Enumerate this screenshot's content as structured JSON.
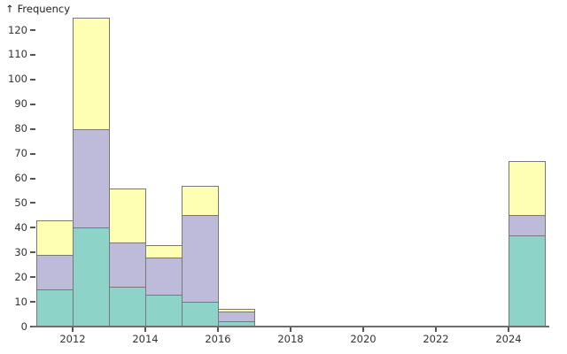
{
  "chart": {
    "y_axis_title": "Frequency",
    "y_axis_arrow": "↑"
  },
  "chart_data": {
    "type": "bar",
    "subtype": "stacked-histogram",
    "title": "",
    "ylabel": "Frequency",
    "xlabel": "",
    "ylim": [
      0,
      125
    ],
    "xlim": [
      2011,
      2025
    ],
    "grid": false,
    "legend": "none",
    "y_ticks": [
      0,
      10,
      20,
      30,
      40,
      50,
      60,
      70,
      80,
      90,
      100,
      110,
      120
    ],
    "x_ticks": [
      2012,
      2014,
      2016,
      2018,
      2020,
      2022,
      2024
    ],
    "bin_width_years": 1,
    "bin_starts": [
      2011,
      2012,
      2013,
      2014,
      2015,
      2016,
      2024
    ],
    "series": [
      {
        "name": "segment-bottom-teal",
        "color": "#8dd3c7",
        "values": [
          15,
          40,
          16,
          13,
          10,
          2,
          37
        ]
      },
      {
        "name": "segment-middle-lavender",
        "color": "#bebada",
        "values": [
          14,
          40,
          18,
          15,
          35,
          4,
          8
        ]
      },
      {
        "name": "segment-top-yellow",
        "color": "#ffffb3",
        "values": [
          14,
          45,
          22,
          5,
          12,
          1,
          22
        ]
      }
    ],
    "totals": [
      43,
      125,
      56,
      33,
      57,
      7,
      67
    ],
    "colors": {
      "axis": "#6e6e6e",
      "bar_border": "#777777",
      "text": "#333333"
    }
  }
}
